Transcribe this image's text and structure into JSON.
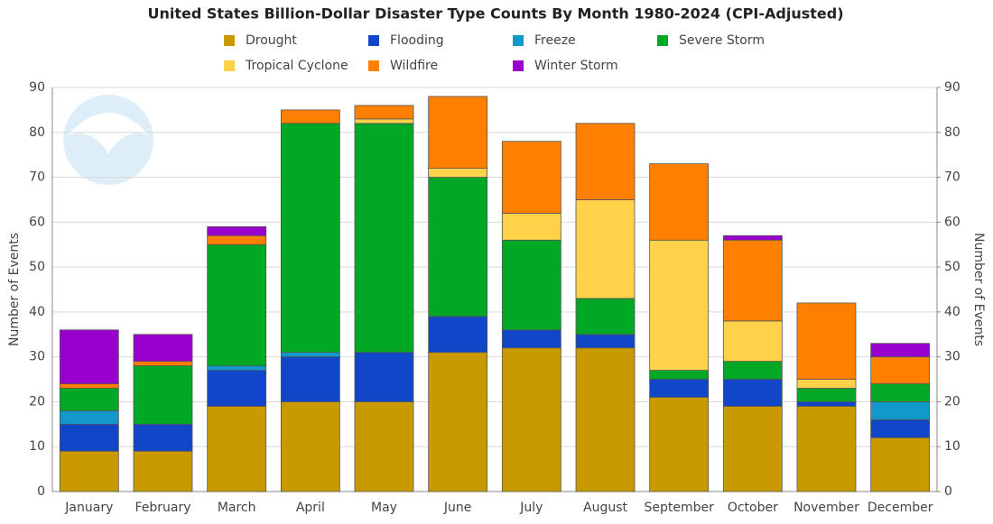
{
  "chart_data": {
    "type": "stacked_bar",
    "title": "United States Billion-Dollar Disaster Type Counts By Month 1980-2024 (CPI-Adjusted)",
    "ylabel": "Number of Events",
    "y2label": "Number of Events",
    "categories": [
      "January",
      "February",
      "March",
      "April",
      "May",
      "June",
      "July",
      "August",
      "September",
      "October",
      "November",
      "December"
    ],
    "series": [
      {
        "name": "Drought",
        "color": "#c99a00",
        "values": [
          9,
          9,
          19,
          20,
          20,
          31,
          32,
          32,
          21,
          19,
          19,
          12
        ]
      },
      {
        "name": "Flooding",
        "color": "#1146c8",
        "values": [
          6,
          6,
          8,
          10,
          11,
          8,
          4,
          3,
          4,
          6,
          1,
          4
        ]
      },
      {
        "name": "Freeze",
        "color": "#1199cc",
        "values": [
          3,
          0,
          1,
          1,
          0,
          0,
          0,
          0,
          0,
          0,
          0,
          4
        ]
      },
      {
        "name": "Severe Storm",
        "color": "#00a826",
        "values": [
          5,
          13,
          27,
          51,
          51,
          31,
          20,
          8,
          2,
          4,
          3,
          4
        ]
      },
      {
        "name": "Tropical Cyclone",
        "color": "#ffd24a",
        "values": [
          0,
          0,
          0,
          0,
          1,
          2,
          6,
          22,
          29,
          9,
          2,
          0
        ]
      },
      {
        "name": "Wildfire",
        "color": "#ff8000",
        "values": [
          1,
          1,
          2,
          3,
          3,
          16,
          16,
          17,
          17,
          18,
          17,
          6
        ]
      },
      {
        "name": "Winter Storm",
        "color": "#9900cc",
        "values": [
          12,
          6,
          2,
          0,
          0,
          0,
          0,
          0,
          0,
          1,
          0,
          3
        ]
      }
    ],
    "ylim": [
      0,
      90
    ],
    "yticks": [
      0,
      10,
      20,
      30,
      40,
      50,
      60,
      70,
      80,
      90
    ],
    "y2lim": [
      0,
      90
    ],
    "y2ticks": [
      0,
      10,
      20,
      30,
      40,
      50,
      60,
      70,
      80,
      90
    ],
    "grid": true
  }
}
